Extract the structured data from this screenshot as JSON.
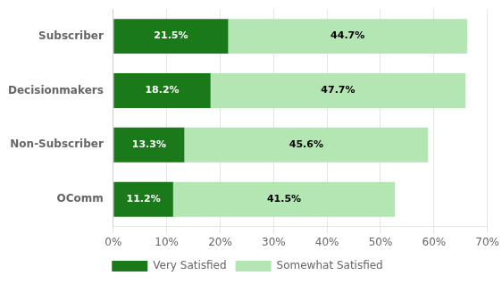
{
  "chart_data": {
    "type": "bar",
    "orientation": "horizontal",
    "stacked": true,
    "categories": [
      "Subscriber",
      "Decisionmakers",
      "Non-Subscriber",
      "OComm"
    ],
    "series": [
      {
        "name": "Very Satisfied",
        "color": "#1a7a1a",
        "values": [
          21.5,
          18.2,
          13.3,
          11.2
        ],
        "value_labels": [
          "21.5%",
          "18.2%",
          "13.3%",
          "11.2%"
        ]
      },
      {
        "name": "Somewhat Satisfied",
        "color": "#b3e6b3",
        "values": [
          44.7,
          47.7,
          45.6,
          41.5
        ],
        "value_labels": [
          "44.7%",
          "47.7%",
          "45.6%",
          "41.5%"
        ]
      }
    ],
    "xlim": [
      0,
      70
    ],
    "xticks": [
      {
        "value": 0,
        "label": "0%"
      },
      {
        "value": 10,
        "label": "10%"
      },
      {
        "value": 20,
        "label": "20%"
      },
      {
        "value": 30,
        "label": "30%"
      },
      {
        "value": 40,
        "label": "40%"
      },
      {
        "value": 50,
        "label": "50%"
      },
      {
        "value": 60,
        "label": "60%"
      },
      {
        "value": 70,
        "label": "70%"
      }
    ],
    "grid": "x",
    "legend": "bottom",
    "data_labels": true
  }
}
